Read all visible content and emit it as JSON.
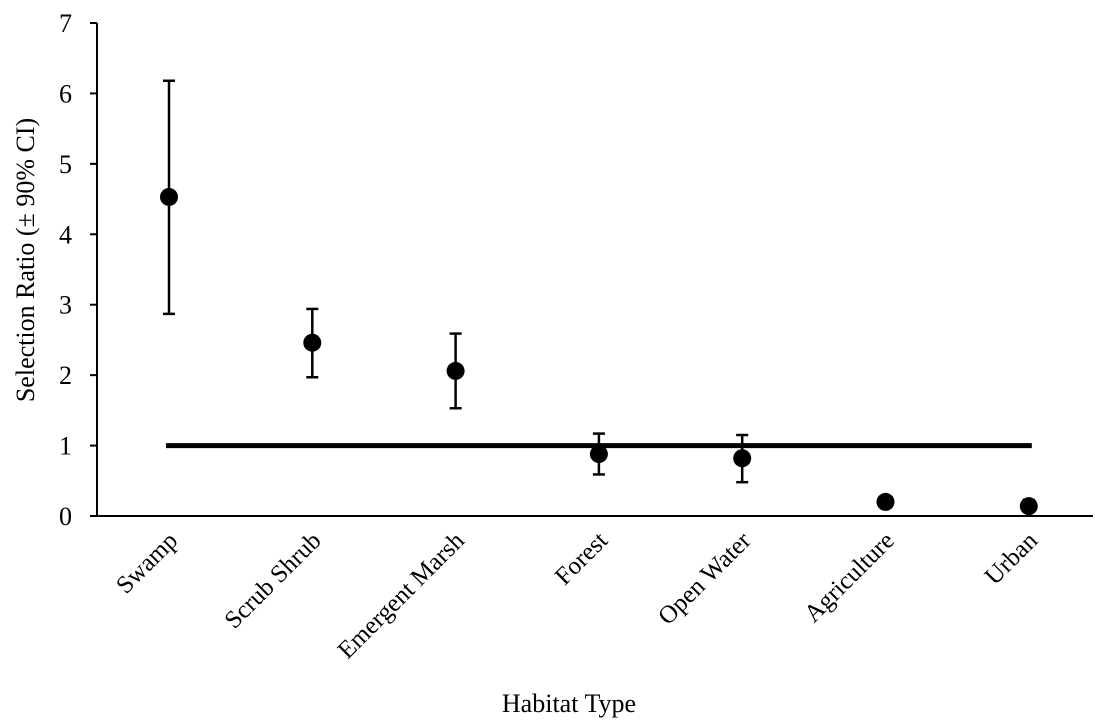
{
  "chart_data": {
    "type": "scatter",
    "title": "",
    "xlabel": "Habitat Type",
    "ylabel": "Selection Ratio (± 90% CI)",
    "ylim": [
      0,
      7
    ],
    "yticks": [
      "0",
      "1",
      "2",
      "3",
      "4",
      "5",
      "6",
      "7"
    ],
    "grid": false,
    "legend": "none",
    "categories": [
      "Swamp",
      "Scrub Shrub",
      "Emergent Marsh",
      "Forest",
      "Open Water",
      "Agriculture",
      "Urban"
    ],
    "series": [
      {
        "values": [
          4.53,
          2.46,
          2.06,
          0.88,
          0.82,
          0.2,
          0.14
        ],
        "ci_lower": [
          2.87,
          1.97,
          1.53,
          0.59,
          0.48,
          0.2,
          0.09
        ],
        "ci_upper": [
          6.18,
          2.94,
          2.59,
          1.17,
          1.15,
          0.2,
          0.23
        ]
      }
    ],
    "reference_line": {
      "y": 1.0
    },
    "colors": {
      "marker": "#000000",
      "axis": "#000000"
    }
  }
}
